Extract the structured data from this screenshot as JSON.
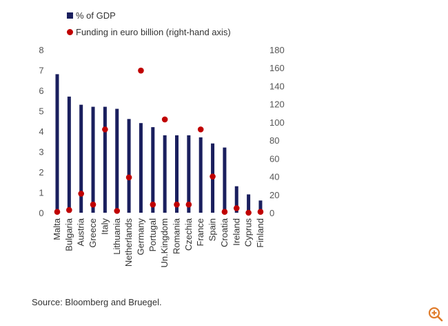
{
  "chart_data": {
    "type": "bar",
    "categories": [
      "Malta",
      "Bulgaria",
      "Austria",
      "Greece",
      "Italy",
      "Lithuania",
      "Netherlands",
      "Germany",
      "Portugal",
      "Un.Kingdom",
      "Romania",
      "Czechia",
      "France",
      "Spain",
      "Croatia",
      "Ireland",
      "Cyprus",
      "Finland"
    ],
    "series": [
      {
        "name": "% of GDP",
        "type": "bar",
        "axis": "left",
        "color": "#1a1f5e",
        "values": [
          6.8,
          5.7,
          5.3,
          5.2,
          5.2,
          5.1,
          4.6,
          4.4,
          4.2,
          3.8,
          3.8,
          3.8,
          3.7,
          3.4,
          3.2,
          1.3,
          0.9,
          0.6
        ]
      },
      {
        "name": "Funding in euro billion (right-hand axis)",
        "type": "scatter",
        "axis": "right",
        "color": "#c00000",
        "values": [
          1,
          3,
          21,
          9,
          92,
          2,
          39,
          157,
          9,
          103,
          9,
          9,
          92,
          40,
          1,
          5,
          0,
          1
        ]
      }
    ],
    "ylim_left": [
      0,
      8
    ],
    "yticks_left": [
      "0",
      "1",
      "2",
      "3",
      "4",
      "5",
      "6",
      "7",
      "8"
    ],
    "ylim_right": [
      0,
      180
    ],
    "yticks_right": [
      "0",
      "20",
      "40",
      "60",
      "80",
      "100",
      "120",
      "140",
      "160",
      "180"
    ],
    "grid": false,
    "legend_position": "top"
  },
  "source_text": "Source: Bloomberg and Bruegel.",
  "zoom_icon": "zoom-in-icon"
}
